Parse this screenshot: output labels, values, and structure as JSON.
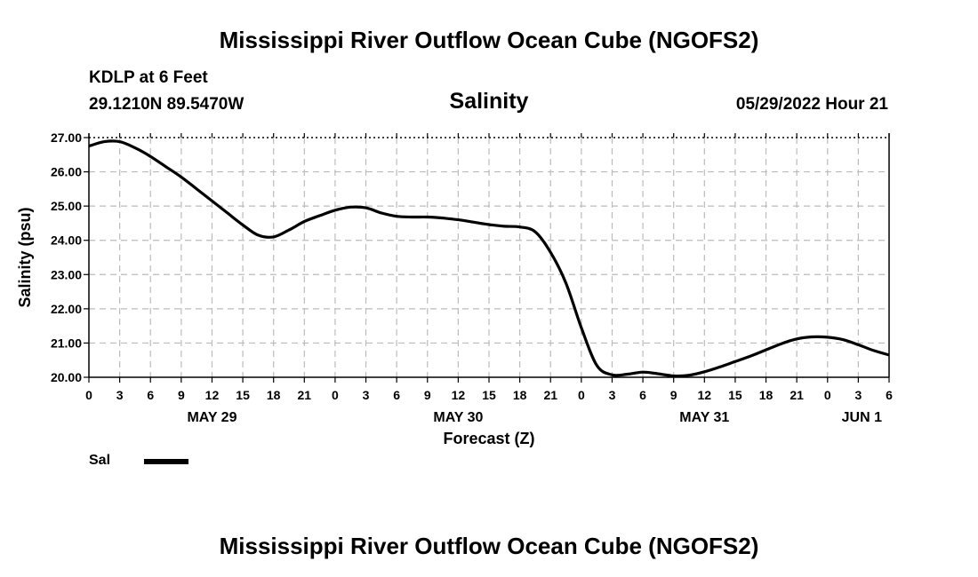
{
  "page": {
    "title_top": "Mississippi River Outflow Ocean Cube (NGOFS2)",
    "title_bottom": "Mississippi River Outflow Ocean Cube (NGOFS2)",
    "station": "KDLP at 6 Feet",
    "coords": "29.1210N  89.5470W",
    "subtitle": "Salinity",
    "datetime": "05/29/2022 Hour 21"
  },
  "chart_data": {
    "type": "line",
    "title": "Salinity",
    "xlabel": "Forecast (Z)",
    "ylabel": "Salinity (psu)",
    "xlim": [
      0,
      78
    ],
    "ylim": [
      20,
      27
    ],
    "yticks": [
      20,
      21,
      22,
      23,
      24,
      25,
      26,
      27
    ],
    "ytick_labels": [
      "20.00",
      "21.00",
      "22.00",
      "23.00",
      "24.00",
      "25.00",
      "26.00",
      "27.00"
    ],
    "xtick_labels": [
      "0",
      "3",
      "6",
      "9",
      "12",
      "15",
      "18",
      "21",
      "0",
      "3",
      "6",
      "9",
      "12",
      "15",
      "18",
      "21",
      "0",
      "3",
      "6",
      "9",
      "12",
      "15",
      "18",
      "21",
      "0",
      "3",
      "6"
    ],
    "day_labels": [
      {
        "label": "MAY 29",
        "hour": 12
      },
      {
        "label": "MAY 30",
        "hour": 36
      },
      {
        "label": "MAY 31",
        "hour": 60
      },
      {
        "label": "JUN 1",
        "hour": 78
      }
    ],
    "grid": true,
    "legend": [
      {
        "name": "Sal",
        "color": "#000000"
      }
    ],
    "series": [
      {
        "name": "Sal",
        "color": "#000000",
        "x": [
          0,
          1.5,
          3,
          4.5,
          6,
          7.5,
          9,
          10.5,
          12,
          13.5,
          15,
          16.5,
          18,
          19.5,
          21,
          22.5,
          24,
          25.5,
          27,
          28.5,
          30,
          31.5,
          33,
          34.5,
          36,
          37.5,
          39,
          40.5,
          42,
          43.5,
          45,
          46.5,
          48,
          49.5,
          51,
          52.5,
          54,
          55.5,
          57,
          58.5,
          60,
          61.5,
          63,
          64.5,
          66,
          67.5,
          69,
          70.5,
          72,
          73.5,
          75,
          76.5,
          78
        ],
        "values": [
          26.75,
          26.88,
          26.88,
          26.7,
          26.45,
          26.15,
          25.85,
          25.5,
          25.15,
          24.8,
          24.45,
          24.15,
          24.1,
          24.3,
          24.55,
          24.72,
          24.88,
          24.97,
          24.95,
          24.8,
          24.7,
          24.68,
          24.68,
          24.65,
          24.6,
          24.53,
          24.46,
          24.41,
          24.39,
          24.25,
          23.65,
          22.75,
          21.45,
          20.35,
          20.07,
          20.09,
          20.15,
          20.1,
          20.04,
          20.06,
          20.16,
          20.3,
          20.46,
          20.62,
          20.8,
          20.98,
          21.12,
          21.18,
          21.17,
          21.1,
          20.95,
          20.78,
          20.65
        ]
      }
    ]
  }
}
